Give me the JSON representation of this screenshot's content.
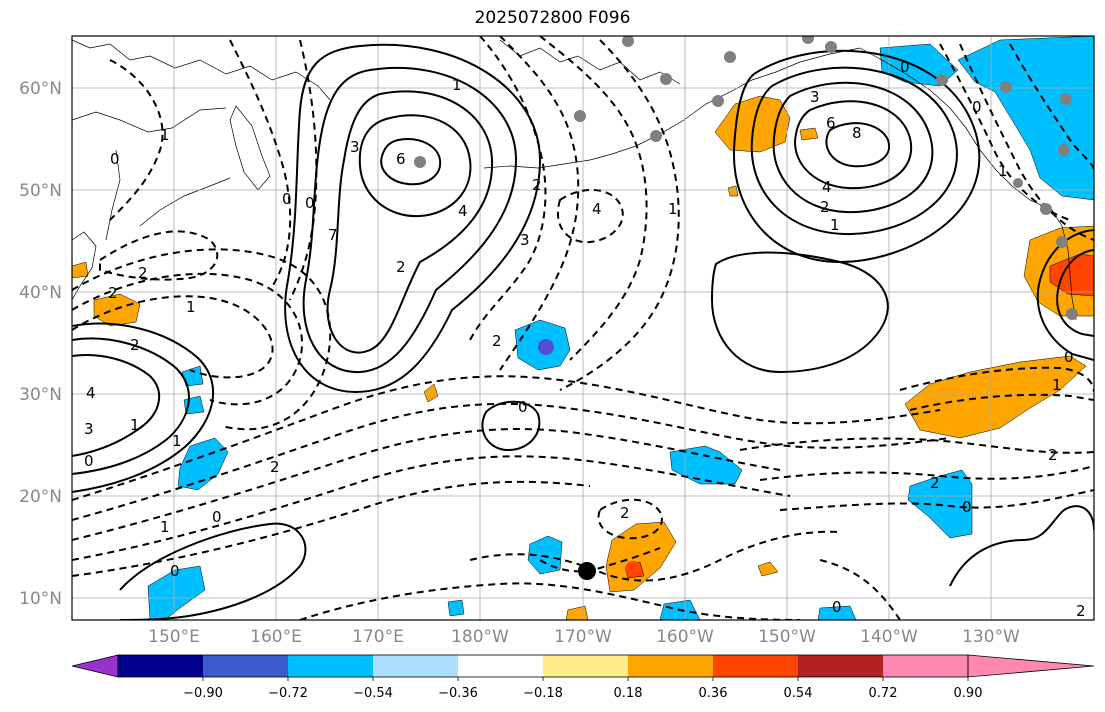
{
  "title": "2025072800 F096",
  "colors": {
    "grid": "#aaaaaa",
    "coast": "#000000",
    "contour": "#000000",
    "station": "#808080",
    "fill_blue": "#00BFFF",
    "fill_orange": "#FFA500",
    "fill_red": "#FF4500",
    "fill_purple": "#5050d0"
  },
  "lat_labels": [
    "60°N",
    "50°N",
    "40°N",
    "30°N",
    "20°N",
    "10°N"
  ],
  "lon_labels": [
    "150°E",
    "160°E",
    "170°E",
    "180°W",
    "170°W",
    "160°W",
    "150°W",
    "140°W",
    "130°W"
  ],
  "colorbar": {
    "colors": [
      "#9932CC",
      "#00008B",
      "#3B5BCC",
      "#00BFFF",
      "#ADDFFF",
      "#FFFFFF",
      "#FFEC8B",
      "#FFA500",
      "#FF4500",
      "#B22222",
      "#FF88B0"
    ],
    "ticks": [
      "−0.90",
      "−0.72",
      "−0.54",
      "−0.36",
      "−0.18",
      "0.18",
      "0.36",
      "0.54",
      "0.72",
      "0.90"
    ]
  },
  "contour_labels": [
    {
      "text": "1"
    },
    {
      "text": "0"
    },
    {
      "text": "2"
    },
    {
      "text": "0"
    },
    {
      "text": "1"
    },
    {
      "text": "3"
    },
    {
      "text": "6"
    },
    {
      "text": "4"
    },
    {
      "text": "7"
    },
    {
      "text": "2"
    },
    {
      "text": "0"
    },
    {
      "text": "1"
    },
    {
      "text": "2"
    },
    {
      "text": "3"
    },
    {
      "text": "4"
    },
    {
      "text": "1"
    },
    {
      "text": "2"
    },
    {
      "text": "2"
    },
    {
      "text": "1"
    },
    {
      "text": "2"
    },
    {
      "text": "4"
    },
    {
      "text": "3"
    },
    {
      "text": "1"
    },
    {
      "text": "0"
    },
    {
      "text": "0"
    },
    {
      "text": "1"
    },
    {
      "text": "0"
    },
    {
      "text": "2"
    },
    {
      "text": "2"
    },
    {
      "text": "0"
    },
    {
      "text": "3"
    },
    {
      "text": "6"
    },
    {
      "text": "8"
    },
    {
      "text": "4"
    },
    {
      "text": "2"
    },
    {
      "text": "1"
    },
    {
      "text": "0"
    },
    {
      "text": "0"
    },
    {
      "text": "1"
    },
    {
      "text": "0"
    },
    {
      "text": "1"
    },
    {
      "text": "2"
    },
    {
      "text": "2"
    },
    {
      "text": "0"
    },
    {
      "text": "2"
    },
    {
      "text": "0"
    }
  ]
}
